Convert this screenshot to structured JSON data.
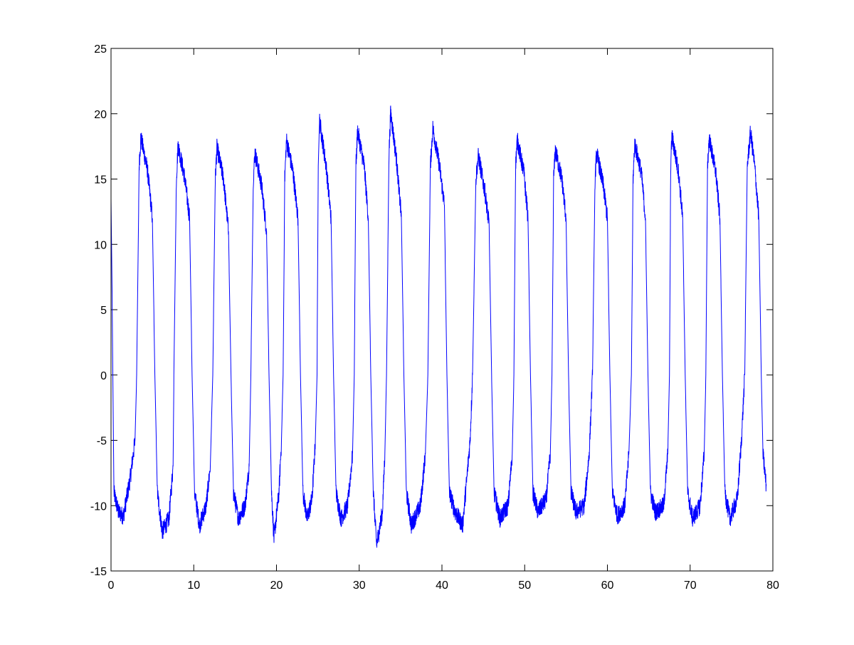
{
  "chart_data": {
    "type": "line",
    "title": "",
    "xlabel": "",
    "ylabel": "",
    "xlim": [
      0,
      80
    ],
    "ylim": [
      -15,
      25
    ],
    "xticks": [
      "0",
      "10",
      "20",
      "30",
      "40",
      "50",
      "60",
      "70",
      "80"
    ],
    "yticks": [
      "-15",
      "-10",
      "-5",
      "0",
      "5",
      "10",
      "15",
      "20",
      "25"
    ],
    "grid": false,
    "box": true,
    "series": [
      {
        "color": "#0000ff",
        "points": [
          [
            0,
            13.5
          ],
          [
            0.15,
            5
          ],
          [
            0.35,
            -9
          ],
          [
            0.9,
            -10.5
          ],
          [
            1.5,
            -10.8
          ],
          [
            2.3,
            -8
          ],
          [
            2.9,
            -5
          ],
          [
            3.1,
            0
          ],
          [
            3.4,
            16
          ],
          [
            3.6,
            18.2
          ],
          [
            4.4,
            15.7
          ],
          [
            5,
            12
          ],
          [
            5.3,
            0
          ],
          [
            5.6,
            -9
          ],
          [
            6.2,
            -12
          ],
          [
            7,
            -11
          ],
          [
            7.5,
            -7
          ],
          [
            7.6,
            0
          ],
          [
            7.9,
            15
          ],
          [
            8.1,
            17.6
          ],
          [
            8.9,
            15.1
          ],
          [
            9.5,
            12
          ],
          [
            9.8,
            0
          ],
          [
            10.1,
            -9
          ],
          [
            10.7,
            -11.5
          ],
          [
            11.5,
            -10
          ],
          [
            12,
            -7
          ],
          [
            12.3,
            0
          ],
          [
            12.6,
            15
          ],
          [
            12.8,
            17.4
          ],
          [
            13.6,
            15
          ],
          [
            14.2,
            11
          ],
          [
            14.5,
            0
          ],
          [
            14.8,
            -9
          ],
          [
            15.4,
            -11
          ],
          [
            16.2,
            -10
          ],
          [
            16.7,
            -7
          ],
          [
            16.9,
            0
          ],
          [
            17.2,
            15
          ],
          [
            17.4,
            17
          ],
          [
            18.2,
            14.5
          ],
          [
            18.8,
            11
          ],
          [
            19.1,
            0
          ],
          [
            19.4,
            -9
          ],
          [
            19.7,
            -12.5
          ],
          [
            20.3,
            -9
          ],
          [
            20.6,
            -5
          ],
          [
            20.8,
            0
          ],
          [
            21.0,
            15
          ],
          [
            21.2,
            18
          ],
          [
            22,
            15.5
          ],
          [
            22.6,
            12
          ],
          [
            22.9,
            0
          ],
          [
            23.2,
            -9
          ],
          [
            23.7,
            -11
          ],
          [
            24.3,
            -9.5
          ],
          [
            24.7,
            -5
          ],
          [
            24.9,
            0
          ],
          [
            25.05,
            16
          ],
          [
            25.2,
            19.5
          ],
          [
            26,
            16
          ],
          [
            26.6,
            12
          ],
          [
            26.9,
            0
          ],
          [
            27.2,
            -9
          ],
          [
            27.8,
            -11
          ],
          [
            28.6,
            -10
          ],
          [
            29.2,
            -6
          ],
          [
            29.4,
            0
          ],
          [
            29.6,
            16
          ],
          [
            29.8,
            18.7
          ],
          [
            30.6,
            16
          ],
          [
            31.1,
            12
          ],
          [
            31.4,
            0
          ],
          [
            31.7,
            -9
          ],
          [
            32.1,
            -13
          ],
          [
            32.8,
            -10.5
          ],
          [
            33.1,
            -6
          ],
          [
            33.3,
            0
          ],
          [
            33.6,
            17
          ],
          [
            33.8,
            20.1
          ],
          [
            34.5,
            16.5
          ],
          [
            35.1,
            12
          ],
          [
            35.4,
            0
          ],
          [
            35.7,
            -9
          ],
          [
            36.3,
            -11.5
          ],
          [
            37.4,
            -10
          ],
          [
            38,
            -6
          ],
          [
            38.3,
            0
          ],
          [
            38.6,
            16
          ],
          [
            38.9,
            18.9
          ],
          [
            39.7,
            16
          ],
          [
            40.3,
            13
          ],
          [
            40.6,
            0
          ],
          [
            40.9,
            -9
          ],
          [
            41.6,
            -10.5
          ],
          [
            42.5,
            -11.5
          ],
          [
            43,
            -8
          ],
          [
            43.4,
            -5
          ],
          [
            43.7,
            0
          ],
          [
            44.1,
            15
          ],
          [
            44.4,
            16.8
          ],
          [
            45.2,
            14
          ],
          [
            45.7,
            11.5
          ],
          [
            46,
            0
          ],
          [
            46.3,
            -9
          ],
          [
            47,
            -11
          ],
          [
            48,
            -10
          ],
          [
            48.5,
            -6
          ],
          [
            48.7,
            0
          ],
          [
            48.9,
            16
          ],
          [
            49.1,
            18
          ],
          [
            49.9,
            15.5
          ],
          [
            50.4,
            12
          ],
          [
            50.7,
            0
          ],
          [
            51,
            -9
          ],
          [
            51.6,
            -10.5
          ],
          [
            52.6,
            -9.5
          ],
          [
            53.1,
            -6
          ],
          [
            53.3,
            0
          ],
          [
            53.5,
            15
          ],
          [
            53.7,
            17.2
          ],
          [
            54.5,
            15
          ],
          [
            55,
            12
          ],
          [
            55.3,
            0
          ],
          [
            55.6,
            -9
          ],
          [
            56.2,
            -10.5
          ],
          [
            57.2,
            -10
          ],
          [
            57.8,
            -6
          ],
          [
            58.2,
            0
          ],
          [
            58.5,
            15
          ],
          [
            58.7,
            17
          ],
          [
            59.5,
            14.5
          ],
          [
            60,
            12
          ],
          [
            60.3,
            0
          ],
          [
            60.6,
            -9
          ],
          [
            61.2,
            -10.8
          ],
          [
            62.1,
            -10
          ],
          [
            62.6,
            -6
          ],
          [
            62.9,
            0
          ],
          [
            63.1,
            15
          ],
          [
            63.3,
            17.7
          ],
          [
            64.1,
            15.5
          ],
          [
            64.6,
            12
          ],
          [
            64.9,
            0
          ],
          [
            65.2,
            -9
          ],
          [
            65.8,
            -10.5
          ],
          [
            66.8,
            -10
          ],
          [
            67.3,
            -6
          ],
          [
            67.5,
            0
          ],
          [
            67.65,
            16
          ],
          [
            67.8,
            18.3
          ],
          [
            68.6,
            15.5
          ],
          [
            69.1,
            12
          ],
          [
            69.4,
            0
          ],
          [
            69.7,
            -9
          ],
          [
            70.3,
            -11
          ],
          [
            71.2,
            -10
          ],
          [
            71.7,
            -6
          ],
          [
            71.9,
            0
          ],
          [
            72.1,
            16
          ],
          [
            72.3,
            18.1
          ],
          [
            73.1,
            15.5
          ],
          [
            73.6,
            12
          ],
          [
            73.9,
            0
          ],
          [
            74.2,
            -9
          ],
          [
            74.8,
            -11
          ],
          [
            75.7,
            -9.5
          ],
          [
            76.2,
            -5
          ],
          [
            76.6,
            0
          ],
          [
            76.9,
            16
          ],
          [
            77.3,
            18.6
          ],
          [
            77.8,
            16
          ],
          [
            78.3,
            12
          ],
          [
            78.6,
            0
          ],
          [
            78.8,
            -6
          ],
          [
            79.2,
            -8.5
          ]
        ]
      }
    ]
  }
}
